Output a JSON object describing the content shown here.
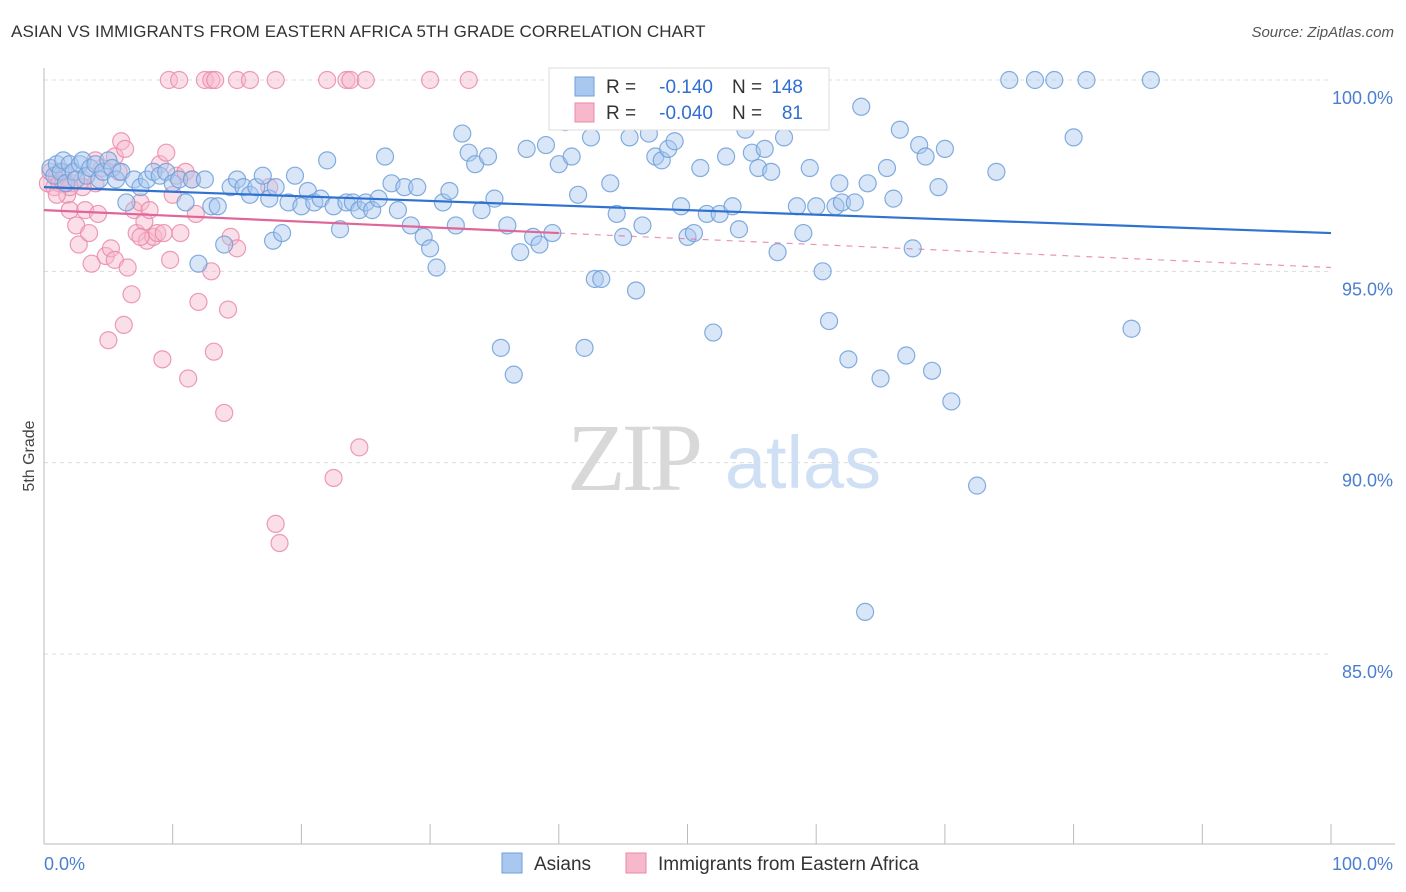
{
  "header": {
    "title": "ASIAN VS IMMIGRANTS FROM EASTERN AFRICA 5TH GRADE CORRELATION CHART",
    "source": "Source: ZipAtlas.com"
  },
  "watermark": {
    "zip": "ZIP",
    "atlas": "atlas"
  },
  "stats_legend": {
    "r_label": "R =",
    "n_label": "N =",
    "rows": [
      {
        "r": "-0.140",
        "n": "148"
      },
      {
        "r": "-0.040",
        "n": "81"
      }
    ]
  },
  "colors": {
    "blue_fill": "#a9c8f0",
    "blue_stroke": "#6f9fd8",
    "blue_line": "#2f72d0",
    "pink_fill": "#f7b8cc",
    "pink_stroke": "#ea8aa8",
    "pink_line": "#e0669a",
    "tick_label": "#4a7fd0"
  },
  "chart_data": {
    "type": "scatter",
    "title": "ASIAN VS IMMIGRANTS FROM EASTERN AFRICA 5TH GRADE CORRELATION CHART",
    "xlabel": "",
    "ylabel": "5th Grade",
    "xlim": [
      0,
      100
    ],
    "ylim": [
      80.6,
      100.8
    ],
    "x_tick_labels": [
      "0.0%",
      "100.0%"
    ],
    "y_ticks": [
      100,
      95,
      90,
      85
    ],
    "y_tick_labels": [
      "100.0%",
      "95.0%",
      "90.0%",
      "85.0%"
    ],
    "grid": true,
    "legend_position": "bottom-center",
    "series": [
      {
        "name": "Asians",
        "color": "blue",
        "r": -0.14,
        "n": 148,
        "trend": {
          "x0": 0,
          "y0": 97.2,
          "x1": 100,
          "y1": 96.0,
          "dashed_from": null
        },
        "points": [
          [
            0.5,
            97.7
          ],
          [
            0.8,
            97.5
          ],
          [
            1.0,
            97.8
          ],
          [
            1.3,
            97.6
          ],
          [
            1.5,
            97.9
          ],
          [
            1.7,
            97.3
          ],
          [
            2.0,
            97.8
          ],
          [
            2.3,
            97.6
          ],
          [
            2.5,
            97.4
          ],
          [
            2.8,
            97.8
          ],
          [
            3.0,
            97.9
          ],
          [
            3.3,
            97.5
          ],
          [
            3.6,
            97.7
          ],
          [
            4.0,
            97.8
          ],
          [
            4.3,
            97.4
          ],
          [
            4.6,
            97.6
          ],
          [
            5.0,
            97.9
          ],
          [
            5.3,
            97.7
          ],
          [
            5.6,
            97.4
          ],
          [
            6.0,
            97.6
          ],
          [
            6.4,
            96.8
          ],
          [
            7.0,
            97.4
          ],
          [
            7.5,
            97.2
          ],
          [
            8.0,
            97.4
          ],
          [
            8.5,
            97.6
          ],
          [
            9.0,
            97.5
          ],
          [
            9.5,
            97.6
          ],
          [
            10.0,
            97.3
          ],
          [
            10.5,
            97.4
          ],
          [
            11.0,
            96.8
          ],
          [
            11.5,
            97.4
          ],
          [
            12.0,
            95.2
          ],
          [
            12.5,
            97.4
          ],
          [
            13.0,
            96.7
          ],
          [
            13.5,
            96.7
          ],
          [
            14.0,
            95.7
          ],
          [
            14.5,
            97.2
          ],
          [
            15.0,
            97.4
          ],
          [
            15.5,
            97.2
          ],
          [
            16.0,
            97.0
          ],
          [
            16.5,
            97.2
          ],
          [
            17.0,
            97.5
          ],
          [
            17.5,
            96.9
          ],
          [
            17.8,
            95.8
          ],
          [
            18.0,
            97.2
          ],
          [
            18.5,
            96.0
          ],
          [
            19.0,
            96.8
          ],
          [
            19.5,
            97.5
          ],
          [
            20.0,
            96.7
          ],
          [
            20.5,
            97.1
          ],
          [
            21.0,
            96.8
          ],
          [
            21.5,
            96.9
          ],
          [
            22.0,
            97.9
          ],
          [
            22.5,
            96.7
          ],
          [
            23.0,
            96.1
          ],
          [
            23.5,
            96.8
          ],
          [
            24.0,
            96.8
          ],
          [
            24.5,
            96.6
          ],
          [
            25.0,
            96.8
          ],
          [
            25.5,
            96.6
          ],
          [
            26.0,
            96.9
          ],
          [
            26.5,
            98.0
          ],
          [
            27.0,
            97.3
          ],
          [
            27.5,
            96.6
          ],
          [
            28.0,
            97.2
          ],
          [
            28.5,
            96.2
          ],
          [
            29.0,
            97.2
          ],
          [
            29.5,
            95.9
          ],
          [
            30.0,
            95.6
          ],
          [
            30.5,
            95.1
          ],
          [
            31.0,
            96.8
          ],
          [
            31.5,
            97.1
          ],
          [
            32.0,
            96.2
          ],
          [
            32.5,
            98.6
          ],
          [
            33.0,
            98.1
          ],
          [
            33.5,
            97.8
          ],
          [
            34.0,
            96.6
          ],
          [
            34.5,
            98.0
          ],
          [
            35.0,
            96.9
          ],
          [
            35.5,
            93.0
          ],
          [
            36.0,
            96.2
          ],
          [
            36.5,
            92.3
          ],
          [
            37.0,
            95.5
          ],
          [
            37.5,
            98.2
          ],
          [
            38.0,
            95.9
          ],
          [
            38.5,
            95.7
          ],
          [
            39.0,
            98.3
          ],
          [
            39.5,
            96.0
          ],
          [
            40.0,
            97.8
          ],
          [
            40.5,
            98.9
          ],
          [
            41.0,
            98.0
          ],
          [
            41.5,
            97.0
          ],
          [
            42.0,
            93.0
          ],
          [
            42.5,
            98.5
          ],
          [
            42.8,
            94.8
          ],
          [
            43.3,
            94.8
          ],
          [
            44.0,
            97.3
          ],
          [
            44.5,
            96.5
          ],
          [
            45.0,
            95.9
          ],
          [
            45.5,
            98.5
          ],
          [
            46.0,
            94.5
          ],
          [
            46.5,
            96.2
          ],
          [
            47.0,
            98.6
          ],
          [
            47.5,
            98.0
          ],
          [
            48.0,
            97.9
          ],
          [
            48.5,
            98.2
          ],
          [
            49.0,
            98.4
          ],
          [
            49.5,
            96.7
          ],
          [
            50.0,
            95.9
          ],
          [
            50.5,
            96.0
          ],
          [
            51.0,
            97.7
          ],
          [
            51.5,
            96.5
          ],
          [
            52.0,
            93.4
          ],
          [
            52.5,
            96.5
          ],
          [
            53.0,
            98.0
          ],
          [
            53.5,
            96.7
          ],
          [
            54.0,
            96.1
          ],
          [
            54.5,
            98.7
          ],
          [
            55.0,
            98.1
          ],
          [
            55.5,
            97.7
          ],
          [
            56.0,
            98.2
          ],
          [
            56.5,
            97.6
          ],
          [
            57.0,
            95.5
          ],
          [
            57.5,
            98.5
          ],
          [
            58.0,
            99.0
          ],
          [
            58.5,
            96.7
          ],
          [
            59.0,
            96.0
          ],
          [
            59.5,
            97.7
          ],
          [
            60.0,
            96.7
          ],
          [
            60.5,
            95.0
          ],
          [
            61.0,
            93.7
          ],
          [
            61.5,
            96.7
          ],
          [
            61.8,
            97.3
          ],
          [
            62.0,
            96.8
          ],
          [
            62.5,
            92.7
          ],
          [
            63.0,
            96.8
          ],
          [
            63.5,
            99.3
          ],
          [
            64.0,
            97.3
          ],
          [
            65.0,
            92.2
          ],
          [
            65.5,
            97.7
          ],
          [
            66.0,
            96.9
          ],
          [
            66.5,
            98.7
          ],
          [
            67.0,
            92.8
          ],
          [
            67.5,
            95.6
          ],
          [
            68.0,
            98.3
          ],
          [
            68.5,
            98.0
          ],
          [
            69.0,
            92.4
          ],
          [
            69.5,
            97.2
          ],
          [
            70.0,
            98.2
          ],
          [
            70.5,
            91.6
          ],
          [
            72.5,
            89.4
          ],
          [
            74.0,
            97.6
          ],
          [
            75.0,
            100.0
          ],
          [
            77.0,
            100.0
          ],
          [
            78.5,
            100.0
          ],
          [
            80.0,
            98.5
          ],
          [
            81.0,
            100.0
          ],
          [
            84.5,
            93.5
          ],
          [
            86.0,
            100.0
          ],
          [
            63.8,
            86.1
          ]
        ]
      },
      {
        "name": "Immigrants from Eastern Africa",
        "color": "pink",
        "r": -0.04,
        "n": 81,
        "trend": {
          "x0": 0,
          "y0": 96.6,
          "x1": 100,
          "y1": 95.1,
          "dashed_from": 40
        },
        "points": [
          [
            0.3,
            97.3
          ],
          [
            0.5,
            97.6
          ],
          [
            0.8,
            97.2
          ],
          [
            1.0,
            97.5
          ],
          [
            1.2,
            97.3
          ],
          [
            1.5,
            97.6
          ],
          [
            1.8,
            97.0
          ],
          [
            2.0,
            96.6
          ],
          [
            2.2,
            97.3
          ],
          [
            2.5,
            96.2
          ],
          [
            2.7,
            95.7
          ],
          [
            3.0,
            97.4
          ],
          [
            3.2,
            96.6
          ],
          [
            3.5,
            96.0
          ],
          [
            3.7,
            95.2
          ],
          [
            4.0,
            97.3
          ],
          [
            4.2,
            96.5
          ],
          [
            4.5,
            97.7
          ],
          [
            4.8,
            95.4
          ],
          [
            5.0,
            93.2
          ],
          [
            5.2,
            95.6
          ],
          [
            5.5,
            95.3
          ],
          [
            5.8,
            97.6
          ],
          [
            6.0,
            98.4
          ],
          [
            6.2,
            93.6
          ],
          [
            6.5,
            95.1
          ],
          [
            6.8,
            94.4
          ],
          [
            7.0,
            96.6
          ],
          [
            7.2,
            96.0
          ],
          [
            7.5,
            96.8
          ],
          [
            7.8,
            96.3
          ],
          [
            8.0,
            95.8
          ],
          [
            8.2,
            96.6
          ],
          [
            8.5,
            95.9
          ],
          [
            8.8,
            96.0
          ],
          [
            9.0,
            97.8
          ],
          [
            9.2,
            92.7
          ],
          [
            9.5,
            98.1
          ],
          [
            9.8,
            95.3
          ],
          [
            10.0,
            97.0
          ],
          [
            10.3,
            97.5
          ],
          [
            10.6,
            96.0
          ],
          [
            11.0,
            97.6
          ],
          [
            11.2,
            92.2
          ],
          [
            11.5,
            97.4
          ],
          [
            11.8,
            96.5
          ],
          [
            12.0,
            94.2
          ],
          [
            12.5,
            100.0
          ],
          [
            13.0,
            100.0
          ],
          [
            13.3,
            100.0
          ],
          [
            9.7,
            100.0
          ],
          [
            10.5,
            100.0
          ],
          [
            15.0,
            100.0
          ],
          [
            16.0,
            100.0
          ],
          [
            18.0,
            100.0
          ],
          [
            22.0,
            100.0
          ],
          [
            23.5,
            100.0
          ],
          [
            23.8,
            100.0
          ],
          [
            25.0,
            100.0
          ],
          [
            30.0,
            100.0
          ],
          [
            33.0,
            100.0
          ],
          [
            13.0,
            95.0
          ],
          [
            13.2,
            92.9
          ],
          [
            14.0,
            91.3
          ],
          [
            14.3,
            94.0
          ],
          [
            14.5,
            95.9
          ],
          [
            15.0,
            95.6
          ],
          [
            17.5,
            97.2
          ],
          [
            18.0,
            88.4
          ],
          [
            18.3,
            87.9
          ],
          [
            22.5,
            89.6
          ],
          [
            24.5,
            90.4
          ],
          [
            5.5,
            98.0
          ],
          [
            6.3,
            98.2
          ],
          [
            4.0,
            97.9
          ],
          [
            3.0,
            97.2
          ],
          [
            2.0,
            97.2
          ],
          [
            1.5,
            97.3
          ],
          [
            1.0,
            97.0
          ],
          [
            7.5,
            95.9
          ],
          [
            9.3,
            96.0
          ]
        ]
      }
    ]
  },
  "bottom_legend": [
    {
      "label": "Asians"
    },
    {
      "label": "Immigrants from Eastern Africa"
    }
  ]
}
